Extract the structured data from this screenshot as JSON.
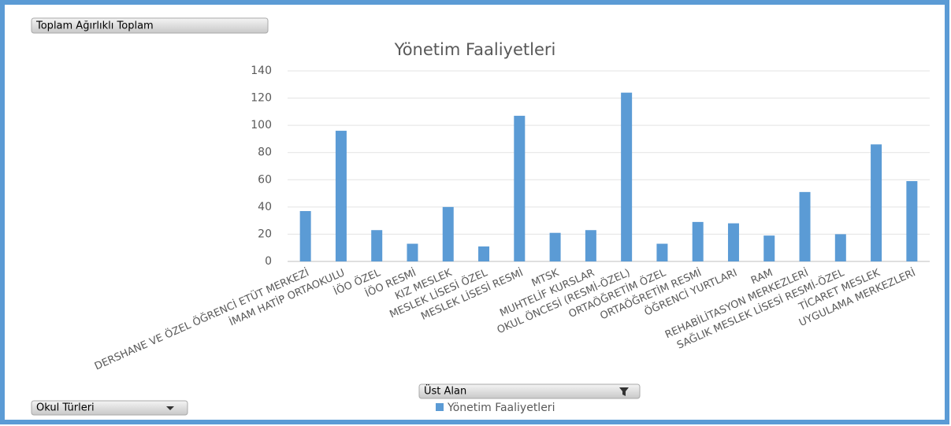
{
  "field_buttons": {
    "value_field": "Toplam Ağırlıklı Toplam",
    "filter_field": "Üst Alan",
    "axis_field": "Okul Türleri"
  },
  "chart_data": {
    "type": "bar",
    "title": "Yönetim Faaliyetleri",
    "categories": [
      "DERSHANE VE ÖZEL ÖĞRENCİ ETÜT MERKEZİ",
      "İMAM HATİP ORTAOKULU",
      "İÖO ÖZEL",
      "İÖO RESMİ",
      "KIZ MESLEK",
      "MESLEK LİSESİ ÖZEL",
      "MESLEK LİSESİ RESMİ",
      "MTSK",
      "MUHTELİF KURSLAR",
      "OKUL ÖNCESİ (RESMİ-ÖZEL)",
      "ORTAÖĞRETİM ÖZEL",
      "ORTAÖĞRETİM RESMİ",
      "ÖĞRENCİ YURTLARI",
      "RAM",
      "REHABİLİTASYON MERKEZLERİ",
      "SAĞLIK MESLEK  LİSESİ RESMİ-ÖZEL",
      "TİCARET MESLEK",
      "UYGULAMA MERKEZLERİ"
    ],
    "series": [
      {
        "name": "Yönetim Faaliyetleri",
        "color": "#5b9bd5",
        "values": [
          37,
          96,
          23,
          13,
          40,
          11,
          107,
          21,
          23,
          124,
          13,
          29,
          28,
          19,
          51,
          20,
          86,
          59
        ]
      }
    ],
    "ylim": [
      0,
      140
    ],
    "yticks": [
      0,
      20,
      40,
      60,
      80,
      100,
      120,
      140
    ],
    "grid": true,
    "legend": "bottom"
  }
}
